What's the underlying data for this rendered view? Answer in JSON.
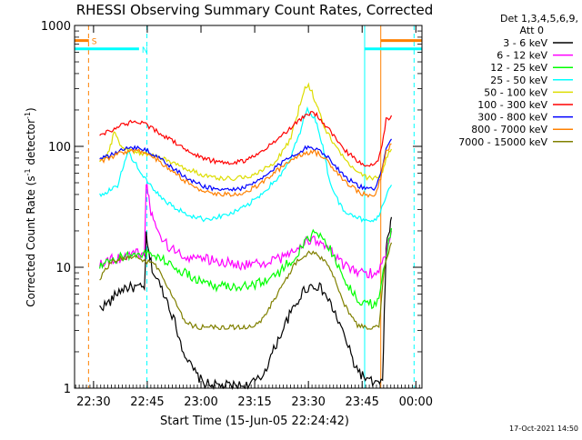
{
  "chart_data": {
    "type": "line",
    "title": "RHESSI Observing Summary Count Rates, Corrected",
    "xlabel": "Start Time (15-Jun-05 22:24:42)",
    "ylabel": "Corrected Count Rate (s",
    "ylabel_sup1": "-1",
    "ylabel_mid": " detector",
    "ylabel_sup2": "-1",
    "ylabel_end": ")",
    "x_units": "minutes since 22:24:42",
    "xlim": [
      0,
      97
    ],
    "ylim": [
      1,
      1000
    ],
    "yscale": "log",
    "x_ticks": [
      {
        "value": 5.3,
        "label": "22:30"
      },
      {
        "value": 20.3,
        "label": "22:45"
      },
      {
        "value": 35.3,
        "label": "23:00"
      },
      {
        "value": 50.3,
        "label": "23:15"
      },
      {
        "value": 65.3,
        "label": "23:30"
      },
      {
        "value": 80.3,
        "label": "23:45"
      },
      {
        "value": 95.3,
        "label": "00:00"
      }
    ],
    "y_ticks": [
      {
        "value": 1,
        "label": "1"
      },
      {
        "value": 10,
        "label": "10"
      },
      {
        "value": 100,
        "label": "100"
      },
      {
        "value": 1000,
        "label": "1000"
      }
    ],
    "legend_title": "Det 1,3,4,5,6,9,",
    "legend_subtitle": "Att 0",
    "legend_position": "right",
    "series": [
      {
        "name": "3 - 6 keV",
        "color": "#000000",
        "x": [
          7,
          8,
          10,
          12,
          14,
          16,
          18,
          19.5,
          20,
          20.5,
          21,
          22,
          24,
          26,
          28,
          30,
          32,
          34,
          36,
          40,
          44,
          48,
          52,
          54,
          56,
          58,
          60,
          62,
          64,
          66,
          68,
          70,
          72,
          74,
          76,
          78,
          80,
          82,
          84,
          86,
          86.5,
          87,
          88,
          88.5
        ],
        "y": [
          4.6,
          4.8,
          5.2,
          6.2,
          6.8,
          6.8,
          6.8,
          6.6,
          18,
          14,
          12,
          9,
          7,
          5.2,
          3.5,
          2.2,
          1.6,
          1.3,
          1.1,
          1.05,
          1.05,
          1.05,
          1.2,
          1.6,
          2.2,
          3,
          4,
          5,
          6.5,
          7,
          7,
          6,
          4.6,
          3.4,
          2.4,
          1.6,
          1.3,
          1.15,
          1.1,
          1.1,
          4,
          15,
          20,
          26
        ]
      },
      {
        "name": "6 - 12 keV",
        "color": "#ff00ff",
        "x": [
          7,
          10,
          13,
          16,
          18,
          19.5,
          20,
          20.5,
          21,
          22,
          24,
          26,
          30,
          34,
          38,
          42,
          46,
          50,
          54,
          58,
          61,
          63,
          65,
          67,
          69,
          71,
          73,
          75,
          77,
          79,
          81,
          83,
          85,
          87,
          88.5
        ],
        "y": [
          11,
          11.5,
          12,
          13,
          13,
          13,
          50,
          40,
          32,
          24,
          18,
          15,
          12.5,
          12,
          11.5,
          11,
          10.5,
          10.5,
          11,
          12,
          13.5,
          15,
          16.5,
          17,
          16,
          14,
          12,
          10.5,
          9.5,
          9,
          9,
          9,
          9.5,
          13,
          20
        ]
      },
      {
        "name": "12 - 25 keV",
        "color": "#00ff00",
        "x": [
          7,
          10,
          14,
          18,
          20,
          22,
          24,
          26,
          28,
          32,
          36,
          40,
          44,
          48,
          52,
          56,
          60,
          63,
          65,
          67,
          69,
          71,
          73,
          75,
          77,
          79,
          81,
          83,
          85,
          87,
          88.5
        ],
        "y": [
          10,
          11,
          12.5,
          13,
          13,
          12.5,
          12,
          11,
          10,
          8.5,
          7.5,
          7,
          7,
          7,
          7.5,
          8.5,
          11,
          14,
          16.5,
          19,
          18,
          15,
          11,
          8.5,
          6.5,
          5.5,
          5,
          5,
          5.5,
          12,
          21
        ]
      },
      {
        "name": "25 - 50 keV",
        "color": "#00ffff",
        "x": [
          7,
          9,
          10,
          12,
          13,
          14,
          15,
          16,
          18,
          20,
          22,
          24,
          26,
          28,
          30,
          32,
          34,
          36,
          38,
          40,
          44,
          48,
          52,
          56,
          58,
          60,
          62,
          63,
          64,
          65,
          66,
          67,
          68,
          69,
          70,
          71,
          73,
          75,
          77,
          79,
          81,
          83,
          85,
          87,
          88.5
        ],
        "y": [
          40,
          41,
          44,
          48,
          60,
          75,
          90,
          80,
          65,
          52,
          44,
          38,
          34,
          31,
          29,
          27,
          26,
          25,
          25.5,
          26,
          28,
          32,
          40,
          52,
          60,
          75,
          110,
          130,
          170,
          200,
          190,
          170,
          140,
          110,
          80,
          55,
          38,
          30,
          28,
          26,
          24,
          24,
          26,
          40,
          48
        ]
      },
      {
        "name": "50 - 100 keV",
        "color": "#dddd00",
        "x": [
          7,
          9,
          10,
          11,
          12,
          13,
          14,
          15,
          17,
          19,
          21,
          23,
          25,
          28,
          32,
          36,
          40,
          44,
          48,
          52,
          56,
          58,
          60,
          62,
          63,
          64,
          65,
          66,
          67,
          68,
          69,
          70,
          72,
          74,
          76,
          78,
          80,
          82,
          84,
          86,
          87,
          88.5
        ],
        "y": [
          78,
          82,
          100,
          130,
          118,
          100,
          95,
          92,
          90,
          88,
          86,
          82,
          78,
          72,
          64,
          58,
          55,
          54,
          56,
          62,
          75,
          90,
          110,
          170,
          230,
          290,
          320,
          300,
          240,
          200,
          170,
          140,
          110,
          90,
          75,
          65,
          58,
          55,
          55,
          60,
          80,
          95
        ]
      },
      {
        "name": "100 - 300 keV",
        "color": "#ff0000",
        "x": [
          7,
          10,
          13,
          16,
          18,
          20,
          22,
          24,
          28,
          32,
          36,
          40,
          44,
          48,
          52,
          56,
          60,
          64,
          66,
          68,
          70,
          72,
          74,
          76,
          78,
          80,
          82,
          84,
          85.5,
          87,
          88.5
        ],
        "y": [
          125,
          135,
          150,
          158,
          158,
          150,
          140,
          128,
          108,
          90,
          80,
          74,
          73,
          77,
          88,
          110,
          140,
          175,
          190,
          178,
          150,
          125,
          105,
          90,
          80,
          72,
          70,
          70,
          90,
          165,
          180
        ]
      },
      {
        "name": "300 - 800 keV",
        "color": "#0000ff",
        "x": [
          7,
          10,
          13,
          16,
          18,
          20,
          22,
          24,
          28,
          32,
          36,
          40,
          44,
          48,
          52,
          56,
          60,
          64,
          66,
          68,
          70,
          72,
          74,
          76,
          78,
          80,
          82,
          84,
          85.5,
          87,
          88.5
        ],
        "y": [
          78,
          84,
          92,
          98,
          98,
          94,
          86,
          78,
          64,
          53,
          47,
          44,
          44,
          46,
          53,
          66,
          82,
          95,
          98,
          95,
          86,
          74,
          63,
          55,
          50,
          46,
          44,
          44,
          60,
          100,
          115
        ]
      },
      {
        "name": "800 - 7000 keV",
        "color": "#ff8000",
        "x": [
          7,
          10,
          13,
          16,
          18,
          20,
          22,
          24,
          28,
          32,
          36,
          40,
          44,
          48,
          52,
          56,
          60,
          64,
          66,
          68,
          70,
          72,
          74,
          76,
          78,
          80,
          82,
          84,
          85.5,
          87,
          88.5
        ],
        "y": [
          74,
          80,
          88,
          93,
          93,
          89,
          82,
          74,
          60,
          49,
          43,
          40,
          40,
          42,
          49,
          61,
          76,
          88,
          90,
          87,
          79,
          68,
          58,
          50,
          45,
          41,
          39,
          39,
          55,
          90,
          105
        ]
      },
      {
        "name": "7000 - 15000 keV",
        "color": "#808000",
        "x": [
          7,
          9,
          11,
          14,
          17,
          19,
          21,
          23,
          25,
          27,
          29,
          31,
          33,
          35,
          40,
          45,
          50,
          52,
          55,
          58,
          61,
          63,
          65,
          67,
          69,
          71,
          73,
          75,
          77,
          79,
          81,
          83,
          85,
          86.5,
          88.5
        ],
        "y": [
          8,
          10,
          11.5,
          12,
          12,
          11.5,
          11,
          10,
          8,
          6,
          4.5,
          3.6,
          3.3,
          3.2,
          3.2,
          3.2,
          3.2,
          3.6,
          5,
          7,
          10,
          12,
          13,
          13,
          12,
          10,
          7.5,
          5.2,
          4,
          3.3,
          3.2,
          3.2,
          3.3,
          10,
          16
        ]
      }
    ],
    "annotations": [
      {
        "kind": "vline",
        "x": 3.9,
        "color": "#ff8000",
        "dash": true
      },
      {
        "kind": "vline",
        "x": 20.2,
        "color": "#00ffff",
        "dash": true
      },
      {
        "kind": "vline",
        "x": 81,
        "color": "#00ffff",
        "dash": false
      },
      {
        "kind": "vline",
        "x": 85.5,
        "color": "#ff8000",
        "dash": false
      },
      {
        "kind": "vline",
        "x": 94.8,
        "color": "#00ffff",
        "dash": true
      },
      {
        "kind": "hbar",
        "x0": 0,
        "x1": 4,
        "y": 750,
        "color": "#ff8000",
        "label": "S"
      },
      {
        "kind": "hbar",
        "x0": 0,
        "x1": 18,
        "y": 640,
        "color": "#00ffff",
        "label": "N"
      },
      {
        "kind": "hbar",
        "x0": 81,
        "x1": 97,
        "y": 640,
        "color": "#00ffff",
        "label": ""
      },
      {
        "kind": "hbar",
        "x0": 85.5,
        "x1": 97,
        "y": 750,
        "color": "#ff8000",
        "label": ""
      }
    ]
  },
  "footer_timestamp": "17-Oct-2021 14:50"
}
